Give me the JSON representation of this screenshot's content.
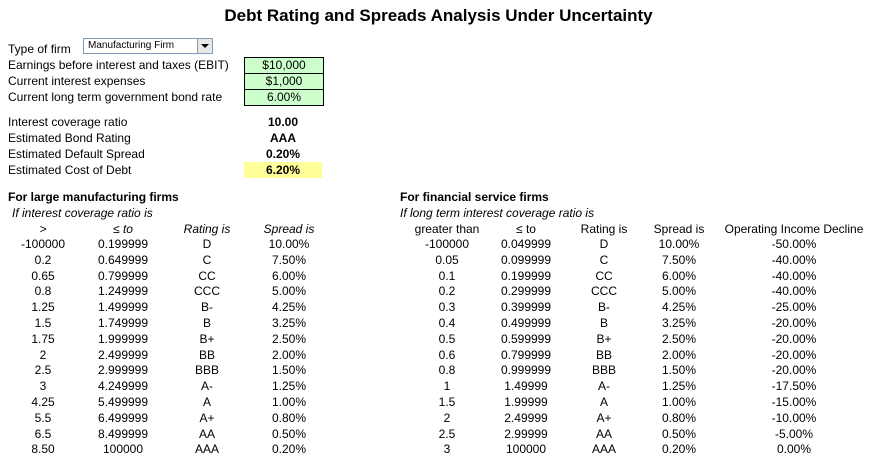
{
  "title": "Debt Rating and Spreads Analysis Under Uncertainty",
  "inputs": {
    "firm_type_label": "Type of firm",
    "firm_type_value": "Manufacturing Firm",
    "ebit_label": "Earnings before interest and taxes (EBIT)",
    "ebit_value": "$10,000",
    "interest_label": "Current interest expenses",
    "interest_value": "$1,000",
    "bond_rate_label": "Current long term government bond rate",
    "bond_rate_value": "6.00%"
  },
  "outputs": {
    "coverage_label": "Interest  coverage ratio",
    "coverage_value": "10.00",
    "rating_label": "Estimated Bond Rating",
    "rating_value": "AAA",
    "spread_label": "Estimated Default Spread",
    "spread_value": "0.20%",
    "cost_label": "Estimated Cost of Debt",
    "cost_value": "6.20%"
  },
  "large_firms": {
    "heading": "For large manufacturing firms",
    "subheading": "If interest coverage ratio is",
    "columns": [
      ">",
      "≤ to",
      "Rating is",
      "Spread is"
    ],
    "rows": [
      [
        "-100000",
        "0.199999",
        "D",
        "10.00%"
      ],
      [
        "0.2",
        "0.649999",
        "C",
        "7.50%"
      ],
      [
        "0.65",
        "0.799999",
        "CC",
        "6.00%"
      ],
      [
        "0.8",
        "1.249999",
        "CCC",
        "5.00%"
      ],
      [
        "1.25",
        "1.499999",
        "B-",
        "4.25%"
      ],
      [
        "1.5",
        "1.749999",
        "B",
        "3.25%"
      ],
      [
        "1.75",
        "1.999999",
        "B+",
        "2.50%"
      ],
      [
        "2",
        "2.499999",
        "BB",
        "2.00%"
      ],
      [
        "2.5",
        "2.999999",
        "BBB",
        "1.50%"
      ],
      [
        "3",
        "4.249999",
        "A-",
        "1.25%"
      ],
      [
        "4.25",
        "5.499999",
        "A",
        "1.00%"
      ],
      [
        "5.5",
        "6.499999",
        "A+",
        "0.80%"
      ],
      [
        "6.5",
        "8.499999",
        "AA",
        "0.50%"
      ],
      [
        "8.50",
        "100000",
        "AAA",
        "0.20%"
      ]
    ]
  },
  "financial_firms": {
    "heading": "For financial service firms",
    "subheading": "If long term interest coverage ratio is",
    "columns": [
      "greater than",
      "≤ to",
      "Rating is",
      "Spread is",
      "Operating Income Decline"
    ],
    "rows": [
      [
        "-100000",
        "0.049999",
        "D",
        "10.00%",
        "-50.00%"
      ],
      [
        "0.05",
        "0.099999",
        "C",
        "7.50%",
        "-40.00%"
      ],
      [
        "0.1",
        "0.199999",
        "CC",
        "6.00%",
        "-40.00%"
      ],
      [
        "0.2",
        "0.299999",
        "CCC",
        "5.00%",
        "-40.00%"
      ],
      [
        "0.3",
        "0.399999",
        "B-",
        "4.25%",
        "-25.00%"
      ],
      [
        "0.4",
        "0.499999",
        "B",
        "3.25%",
        "-20.00%"
      ],
      [
        "0.5",
        "0.599999",
        "B+",
        "2.50%",
        "-20.00%"
      ],
      [
        "0.6",
        "0.799999",
        "BB",
        "2.00%",
        "-20.00%"
      ],
      [
        "0.8",
        "0.999999",
        "BBB",
        "1.50%",
        "-20.00%"
      ],
      [
        "1",
        "1.49999",
        "A-",
        "1.25%",
        "-17.50%"
      ],
      [
        "1.5",
        "1.99999",
        "A",
        "1.00%",
        "-15.00%"
      ],
      [
        "2",
        "2.49999",
        "A+",
        "0.80%",
        "-10.00%"
      ],
      [
        "2.5",
        "2.99999",
        "AA",
        "0.50%",
        "-5.00%"
      ],
      [
        "3",
        "100000",
        "AAA",
        "0.20%",
        "0.00%"
      ]
    ]
  },
  "colors": {
    "input_fill": "#ccffcc",
    "result_fill": "#ffff99"
  }
}
